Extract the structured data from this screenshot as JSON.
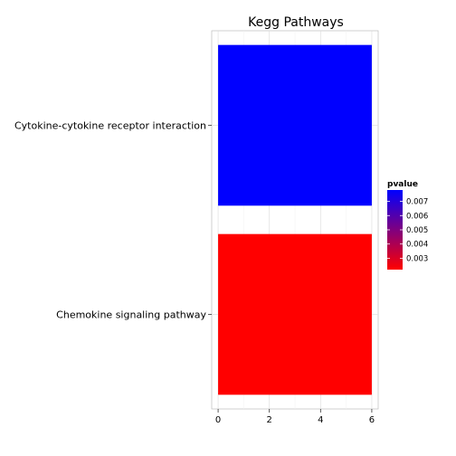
{
  "chart_data": {
    "type": "bar",
    "orientation": "horizontal",
    "title": "Kegg Pathways",
    "xlabel": "",
    "ylabel": "",
    "xlim": [
      -0.25,
      6.25
    ],
    "x_ticks": [
      0,
      2,
      4,
      6
    ],
    "categories": [
      "Chemokine signaling pathway",
      "Cytokine-cytokine receptor interaction"
    ],
    "values": [
      6,
      6
    ],
    "pvalue": [
      0.0022,
      0.0078
    ],
    "grid": true,
    "legend": {
      "title": "pvalue",
      "placement": "right",
      "ticks": [
        0.007,
        0.006,
        0.005,
        0.004,
        0.003
      ],
      "range": [
        0.0022,
        0.0078
      ],
      "low_color": "#ff0000",
      "high_color": "#0000ff"
    }
  }
}
